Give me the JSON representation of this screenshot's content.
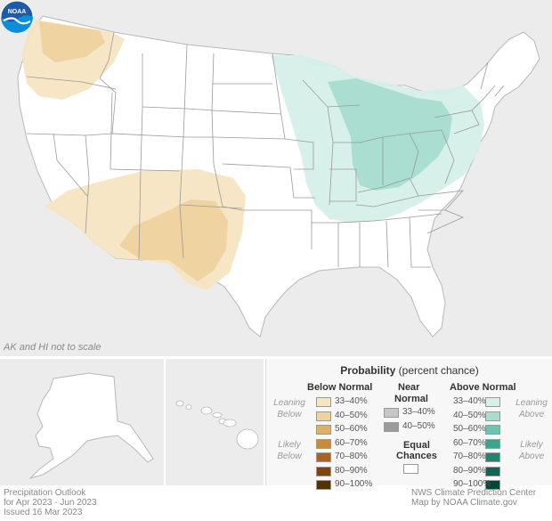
{
  "map": {
    "note": "AK and HI not to scale",
    "logo_text": "NOAA"
  },
  "legend": {
    "title_bold": "Probability",
    "title_rest": " (percent chance)",
    "below_header": "Below Normal",
    "near_header_1": "Near",
    "near_header_2": "Normal",
    "above_header": "Above Normal",
    "leaning": "Leaning",
    "below": "Below",
    "above": "Above",
    "likely": "Likely",
    "equal_1": "Equal",
    "equal_2": "Chances",
    "below_items": [
      {
        "label": "33–40%",
        "color": "#f5e5c3"
      },
      {
        "label": "40–50%",
        "color": "#eed3a0"
      },
      {
        "label": "50–60%",
        "color": "#ddb06b"
      },
      {
        "label": "60–70%",
        "color": "#c98b3a"
      },
      {
        "label": "70–80%",
        "color": "#a8651c"
      },
      {
        "label": "80–90%",
        "color": "#7e4510"
      },
      {
        "label": "90–100%",
        "color": "#543006"
      }
    ],
    "near_items": [
      {
        "label": "33–40%",
        "color": "#c6c6c6"
      },
      {
        "label": "40–50%",
        "color": "#9c9c9c"
      }
    ],
    "above_items": [
      {
        "label": "33–40%",
        "color": "#d6efe9"
      },
      {
        "label": "40–50%",
        "color": "#a8dccf"
      },
      {
        "label": "50–60%",
        "color": "#6bc4b1"
      },
      {
        "label": "60–70%",
        "color": "#3aa58f"
      },
      {
        "label": "70–80%",
        "color": "#1f8571"
      },
      {
        "label": "80–90%",
        "color": "#0d6654"
      },
      {
        "label": "90–100%",
        "color": "#01443a"
      }
    ],
    "equal_color": "#ffffff"
  },
  "footer": {
    "line1": "Precipitation Outlook",
    "line2": "for Apr 2023 - Jun 2023",
    "line3": "Issued 16 Mar 2023",
    "right1": "NWS Climate Prediction Center",
    "right2": "Map by NOAA Climate.gov"
  }
}
